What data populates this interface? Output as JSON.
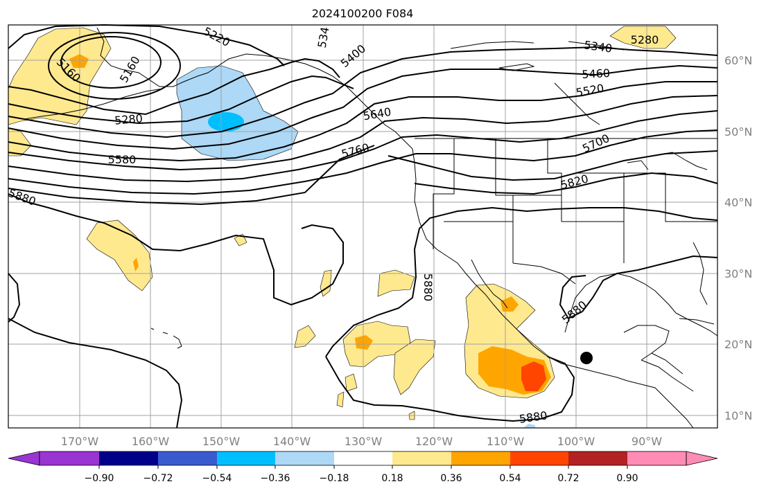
{
  "title": "2024100200 F084",
  "lon_labels": [
    "170°W",
    "160°W",
    "150°W",
    "140°W",
    "130°W",
    "120°W",
    "110°W",
    "100°W",
    "90°W"
  ],
  "lat_labels": [
    "60°N",
    "50°N",
    "40°N",
    "30°N",
    "20°N",
    "10°N"
  ],
  "contour_labels": [
    "5220",
    "534",
    "5280",
    "5160",
    "5160",
    "5400",
    "5340",
    "5460",
    "5520",
    "5280",
    "5640",
    "5580",
    "5760",
    "5700",
    "5820",
    "5880",
    "5880",
    "5880",
    "5880"
  ],
  "colorbar": {
    "ticks": [
      "−0.90",
      "−0.72",
      "−0.54",
      "−0.36",
      "−0.18",
      "0.18",
      "0.36",
      "0.54",
      "0.72",
      "0.90"
    ],
    "colors": [
      "#9a34d2",
      "#00008b",
      "#3a5bd0",
      "#00bfff",
      "#add8f6",
      "#ffffff",
      "#ffe98f",
      "#ffa500",
      "#ff4500",
      "#b22222",
      "#ff8cb4",
      "#ff8cb4"
    ]
  },
  "colors": {
    "pos_light": "#ffe98f",
    "pos_mid": "#ffa500",
    "pos_high": "#ff4500",
    "neg_light": "#add8f6",
    "neg_mid": "#00bfff"
  }
}
